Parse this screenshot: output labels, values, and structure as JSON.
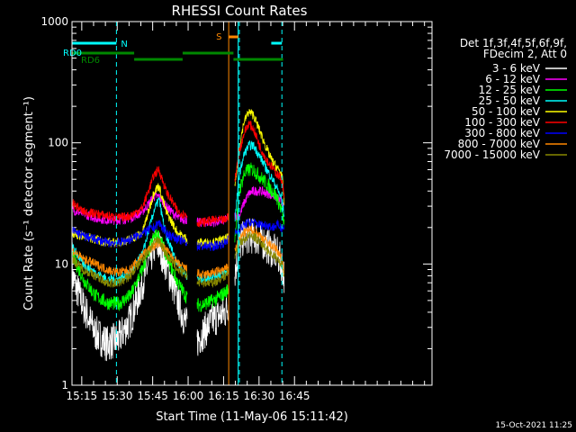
{
  "chart_data": {
    "type": "line",
    "title": "RHESSI Count Rates",
    "xlabel": "Start Time (11-May-06 15:11:42)",
    "ylabel": "Count Rate (s⁻¹ detector segment⁻¹)",
    "yscale": "log",
    "ylim": [
      1,
      1000
    ],
    "xlim_minutes": [
      15.2,
      167.5
    ],
    "x_tick_labels": [
      "15:15",
      "15:30",
      "15:45",
      "16:00",
      "16:15",
      "16:30",
      "16:45"
    ],
    "x_tick_minutes": [
      19.33,
      34.33,
      49.33,
      64.33,
      79.33,
      94.33,
      109.33
    ],
    "y_tick_labels": [
      "1",
      "10",
      "100",
      "1000"
    ],
    "y_tick_values": [
      1,
      10,
      100,
      1000
    ],
    "legend_header": [
      "Det 1f,3f,4f,5f,6f,9f,",
      "FDecim 2, Att 0"
    ],
    "legend_placement": "right",
    "footer_date": "15-Oct-2021 11:25",
    "data_gaps": [
      [
        64.0,
        68.0
      ],
      [
        81.5,
        84.0
      ]
    ],
    "x_minutes": [
      15.2,
      20,
      25,
      30,
      35,
      40,
      45,
      50,
      52,
      55,
      60,
      64,
      68,
      70,
      75,
      80,
      82,
      86,
      88,
      90,
      92,
      95,
      98,
      100,
      102,
      104,
      105
    ],
    "series": [
      {
        "name": "3 - 6 keV",
        "color": "#ffffff",
        "values": [
          8,
          4.5,
          2.7,
          2.2,
          2.4,
          3.5,
          7,
          14,
          14,
          10,
          5,
          3,
          2.3,
          2.6,
          3.5,
          4,
          5,
          14,
          17,
          17,
          17,
          16,
          14,
          13,
          12,
          10,
          8
        ]
      },
      {
        "name": "6 - 12 keV",
        "color": "#ff00ff",
        "values": [
          28,
          26,
          24,
          23,
          23,
          24,
          27,
          36,
          36,
          30,
          24,
          23,
          22,
          22,
          22,
          23,
          25,
          25,
          32,
          38,
          40,
          40,
          38,
          37,
          35,
          32,
          28
        ]
      },
      {
        "name": "12 - 25 keV",
        "color": "#00ff00",
        "values": [
          12,
          7.5,
          5.5,
          4.8,
          4.7,
          5.5,
          9,
          17,
          17,
          12,
          7,
          5.2,
          4.6,
          4.6,
          5.0,
          5.8,
          6.5,
          40,
          55,
          60,
          60,
          52,
          45,
          40,
          35,
          27,
          21
        ]
      },
      {
        "name": "25 - 50 keV",
        "color": "#00ffff",
        "values": [
          14,
          10,
          8.5,
          7.5,
          7.5,
          8.5,
          12,
          28,
          34,
          17,
          10,
          8,
          7.5,
          7.5,
          8,
          8.5,
          9,
          55,
          80,
          95,
          95,
          75,
          58,
          50,
          42,
          34,
          25
        ]
      },
      {
        "name": "50 - 100 keV",
        "color": "#ffff00",
        "values": [
          18,
          17,
          16,
          15,
          15,
          16,
          18,
          40,
          44,
          27,
          18,
          16,
          15,
          15,
          15,
          16,
          17,
          95,
          150,
          180,
          170,
          120,
          85,
          70,
          62,
          55,
          32
        ]
      },
      {
        "name": "100 - 300 keV",
        "color": "#ff0000",
        "values": [
          32,
          27,
          26,
          25,
          24,
          25,
          29,
          55,
          60,
          40,
          27,
          25,
          22,
          22,
          23,
          23,
          26,
          85,
          120,
          145,
          130,
          90,
          70,
          62,
          55,
          50,
          35
        ]
      },
      {
        "name": "300 - 800 keV",
        "color": "#0000ff",
        "values": [
          19,
          17,
          16,
          15,
          15,
          16,
          18,
          20,
          22,
          18,
          16,
          15,
          14,
          14,
          14,
          15,
          17,
          19,
          21,
          22,
          22,
          21,
          21,
          20,
          21,
          20,
          20
        ]
      },
      {
        "name": "800 - 7000 keV",
        "color": "#ff8800",
        "values": [
          13,
          11,
          10,
          9,
          8.5,
          9,
          12,
          14,
          15,
          13,
          10,
          9,
          8.5,
          8,
          8.5,
          9,
          10,
          16,
          18,
          19,
          19,
          17,
          15,
          14,
          13,
          11,
          9
        ]
      },
      {
        "name": "7000 - 15000 keV",
        "color": "#888800",
        "values": [
          11,
          9,
          8,
          7,
          7,
          8,
          11,
          15,
          16,
          12,
          9,
          8,
          7,
          7,
          7,
          8,
          9,
          15,
          16,
          17,
          17,
          15,
          13,
          12,
          11,
          10,
          8
        ]
      }
    ],
    "attenuator_bars": {
      "name": "RD0",
      "color": "#00ffff",
      "segments": [
        [
          15.2,
          34.0
        ],
        [
          99.5,
          104.0
        ]
      ],
      "label": "N"
    },
    "decimation_bars": {
      "name": "RD6",
      "color": "#008800",
      "segments": [
        [
          15.2,
          41.5
        ],
        [
          41.5,
          62.0
        ],
        [
          62.0,
          83.5
        ],
        [
          83.5,
          104.5
        ]
      ]
    },
    "saa_bar": {
      "label": "S",
      "color": "#ff8800",
      "segments": [
        [
          81.5,
          85.5
        ]
      ]
    },
    "vertical_markers": [
      {
        "minute": 15.2,
        "color": "#00ffff",
        "style": "solid"
      },
      {
        "minute": 34.0,
        "color": "#00ffff",
        "style": "dashed"
      },
      {
        "minute": 81.5,
        "color": "#ff8800",
        "style": "solid"
      },
      {
        "minute": 85.5,
        "color": "#00ffff",
        "style": "solid"
      },
      {
        "minute": 86.0,
        "color": "#00ffff",
        "style": "dashed"
      },
      {
        "minute": 104.0,
        "color": "#00ffff",
        "style": "dashed"
      }
    ]
  }
}
